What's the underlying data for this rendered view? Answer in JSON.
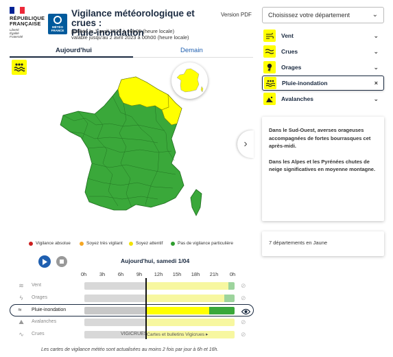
{
  "header": {
    "rf_lines": [
      "RÉPUBLIQUE",
      "FRANÇAISE"
    ],
    "rf_motto": [
      "Liberté",
      "Égalité",
      "Fraternité"
    ],
    "mf_logo": [
      "MÉTÉO",
      "FRANCE"
    ],
    "title_line1": "Vigilance météorologique et crues :",
    "title_line2": "Pluie-inondation",
    "published": "publiée le 1 avril 2023 à 10h05 (heure locale)",
    "valid": "valable jusqu'au 2 avril 2023 à 00h00 (heure locale)",
    "pdf_label": "Version PDF"
  },
  "tabs": {
    "today": "Aujourd'hui",
    "tomorrow": "Demain",
    "active": "today"
  },
  "legend": [
    {
      "label": "Vigilance absolue",
      "color": "#cc1f1f"
    },
    {
      "label": "Soyez très vigilant",
      "color": "#f5a623"
    },
    {
      "label": "Soyez attentif",
      "color": "#f2e200"
    },
    {
      "label": "Pas de vigilance particulière",
      "color": "#2e9e2e"
    }
  ],
  "colors": {
    "green": "#3aa83a",
    "yellow": "#ffff00",
    "navy": "#1a2a40",
    "blue": "#1f5fb0"
  },
  "timeline": {
    "title": "Aujourd'hui, samedi 1/04",
    "hours": [
      "0h",
      "3h",
      "6h",
      "9h",
      "12h",
      "15h",
      "18h",
      "21h",
      "0h"
    ],
    "now_fraction": 0.41,
    "rows": [
      {
        "label": "Vent",
        "icon": "wind-icon",
        "active": false
      },
      {
        "label": "Orages",
        "icon": "storm-icon",
        "active": false
      },
      {
        "label": "Pluie-inondation",
        "icon": "flood-icon",
        "active": true
      },
      {
        "label": "Avalanches",
        "icon": "avalanche-icon",
        "active": false
      },
      {
        "label": "Crues",
        "icon": "river-icon",
        "active": false
      }
    ],
    "vigicrues_logo": "VIGICRUES",
    "vigicrues_link": "Cartes et bulletins Vigicrues ▸"
  },
  "footnote": "Les cartes de vigilance météo sont actualisées au moins 2 fois par jour à 6h et 16h.",
  "right_panel": {
    "select_placeholder": "Choisissez votre département",
    "phenomena": [
      {
        "label": "Vent",
        "icon": "wind-icon",
        "action": "⌄"
      },
      {
        "label": "Crues",
        "icon": "river-icon",
        "action": "⌄"
      },
      {
        "label": "Orages",
        "icon": "storm-icon",
        "action": "⌄"
      },
      {
        "label": "Pluie-inondation",
        "icon": "flood-icon",
        "action": "×",
        "selected": true
      },
      {
        "label": "Avalanches",
        "icon": "avalanche-icon",
        "action": "⌄"
      }
    ],
    "text_p1": "Dans le Sud-Ouest, averses orageuses accompagnées de fortes bourrasques cet après-midi.",
    "text_p2": "Dans les Alpes et les Pyrénées chutes de neige significatives en moyenne montagne.",
    "dept_count": "7 départements en Jaune"
  }
}
